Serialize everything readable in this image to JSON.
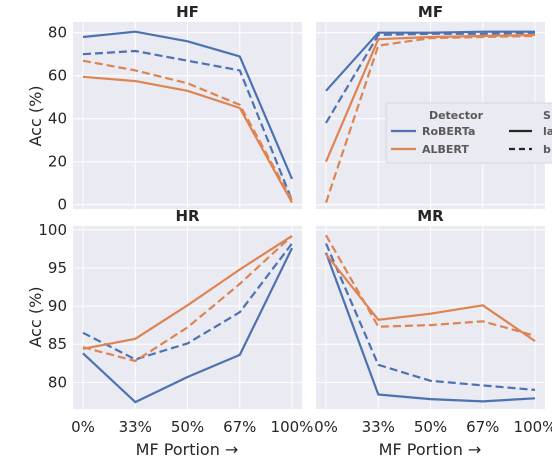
{
  "chart_data": {
    "type": "line",
    "ylabel": "Acc (%)",
    "xlabel": "MF Portion →",
    "categories": [
      "0%",
      "33%",
      "50%",
      "67%",
      "100%"
    ],
    "colors": {
      "RoBERTa": "#4c72b0",
      "ALBERT": "#dd8452"
    },
    "legend": {
      "placement": "center-right (partially clipped)",
      "detector_title": "Detector",
      "style_title": "S",
      "detector_entries": [
        "RoBERTa",
        "ALBERT"
      ],
      "style_entries": [
        "la",
        "b"
      ]
    },
    "panels": [
      {
        "title": "HF",
        "ylim": [
          -2,
          85
        ],
        "yticks": [
          0,
          20,
          40,
          60,
          80
        ],
        "series": [
          {
            "detector": "RoBERTa",
            "style": "solid",
            "values": [
              78,
              80.5,
              76,
              69,
              12
            ]
          },
          {
            "detector": "RoBERTa",
            "style": "dashed",
            "values": [
              70,
              71.5,
              67,
              62.5,
              2
            ]
          },
          {
            "detector": "ALBERT",
            "style": "solid",
            "values": [
              59.5,
              57.5,
              53,
              45,
              1
            ]
          },
          {
            "detector": "ALBERT",
            "style": "dashed",
            "values": [
              67,
              62.5,
              56.5,
              46.5,
              2
            ]
          }
        ]
      },
      {
        "title": "MF",
        "ylim": [
          -2,
          85
        ],
        "yticks": [],
        "series": [
          {
            "detector": "RoBERTa",
            "style": "solid",
            "values": [
              53,
              80,
              80,
              80.5,
              80.5
            ]
          },
          {
            "detector": "RoBERTa",
            "style": "dashed",
            "values": [
              38,
              79,
              79.5,
              79.5,
              80
            ]
          },
          {
            "detector": "ALBERT",
            "style": "solid",
            "values": [
              20,
              77,
              78,
              78.5,
              79
            ]
          },
          {
            "detector": "ALBERT",
            "style": "dashed",
            "values": [
              1,
              74,
              77.5,
              78,
              78.5
            ]
          }
        ]
      },
      {
        "title": "HR",
        "ylim": [
          76.5,
          100.5
        ],
        "yticks": [
          80,
          85,
          90,
          95,
          100
        ],
        "series": [
          {
            "detector": "RoBERTa",
            "style": "solid",
            "values": [
              83.8,
              77.4,
              80.7,
              83.6,
              97.6
            ]
          },
          {
            "detector": "RoBERTa",
            "style": "dashed",
            "values": [
              86.5,
              83,
              85.1,
              89.2,
              98.2
            ]
          },
          {
            "detector": "ALBERT",
            "style": "solid",
            "values": [
              84.4,
              85.7,
              90.1,
              94.8,
              99.2
            ]
          },
          {
            "detector": "ALBERT",
            "style": "dashed",
            "values": [
              84.6,
              82.8,
              87.2,
              92.9,
              99.2
            ]
          }
        ]
      },
      {
        "title": "MR",
        "ylim": [
          76.5,
          100.5
        ],
        "yticks": [],
        "series": [
          {
            "detector": "RoBERTa",
            "style": "solid",
            "values": [
              97,
              78.4,
              77.8,
              77.5,
              77.9
            ]
          },
          {
            "detector": "RoBERTa",
            "style": "dashed",
            "values": [
              98.2,
              82.3,
              80.2,
              79.6,
              79
            ]
          },
          {
            "detector": "ALBERT",
            "style": "solid",
            "values": [
              96.8,
              88.2,
              89,
              90.1,
              85.4
            ]
          },
          {
            "detector": "ALBERT",
            "style": "dashed",
            "values": [
              99.3,
              87.3,
              87.5,
              88,
              86.1
            ]
          }
        ]
      }
    ]
  }
}
